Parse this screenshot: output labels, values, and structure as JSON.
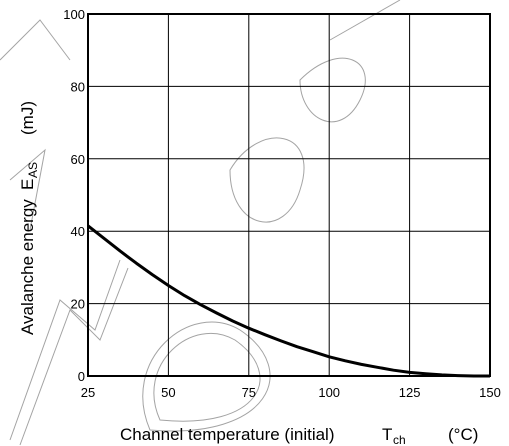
{
  "chart_data": {
    "type": "line",
    "title": "",
    "xlabel": "Channel temperature (initial)",
    "xlabel_symbol": "T",
    "xlabel_symbol_sub": "ch",
    "xlabel_unit": "(°C)",
    "ylabel": "Avalanche energy",
    "ylabel_symbol": "E",
    "ylabel_symbol_sub": "AS",
    "ylabel_unit": "(mJ)",
    "xlim": [
      25,
      150
    ],
    "ylim": [
      0,
      100
    ],
    "xticks": [
      25,
      50,
      75,
      100,
      125,
      150
    ],
    "yticks": [
      0,
      20,
      40,
      60,
      80,
      100
    ],
    "grid": true,
    "series": [
      {
        "color": "#000000",
        "x": [
          25,
          30,
          35,
          40,
          45,
          50,
          55,
          60,
          65,
          70,
          75,
          80,
          85,
          90,
          95,
          100,
          105,
          110,
          115,
          120,
          125,
          130,
          135,
          140,
          145,
          150
        ],
        "y": [
          41.5,
          38.0,
          34.5,
          31.2,
          28.0,
          25.0,
          22.2,
          19.7,
          17.4,
          15.2,
          13.2,
          11.4,
          9.7,
          8.1,
          6.7,
          5.3,
          4.2,
          3.2,
          2.4,
          1.6,
          1.0,
          0.6,
          0.3,
          0.1,
          0.0,
          0.0
        ]
      }
    ]
  }
}
